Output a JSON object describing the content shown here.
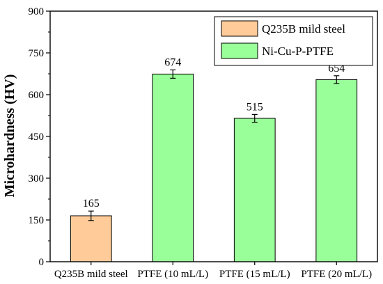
{
  "chart_data": {
    "type": "bar",
    "categories": [
      "Q235B mild steel",
      "PTFE (10 mL/L)",
      "PTFE (15 mL/L)",
      "PTFE (20 mL/L)"
    ],
    "values": [
      165,
      674,
      515,
      654
    ],
    "errors": [
      17,
      15,
      14,
      14
    ],
    "value_labels": [
      "165",
      "674",
      "515",
      "654"
    ],
    "bar_series": [
      "Q235B mild steel",
      "Ni-Cu-P-PTFE",
      "Ni-Cu-P-PTFE",
      "Ni-Cu-P-PTFE"
    ],
    "series": [
      {
        "name": "Q235B mild steel",
        "color": "#FFCC99"
      },
      {
        "name": "Ni-Cu-P-PTFE",
        "color": "#99FF99"
      }
    ],
    "ylabel": "Microhardness (HV)",
    "xlabel": "",
    "ylim": [
      0,
      900
    ],
    "yticks": [
      0,
      150,
      300,
      450,
      600,
      750,
      900
    ],
    "legend_position": "top-right",
    "grid": false
  }
}
